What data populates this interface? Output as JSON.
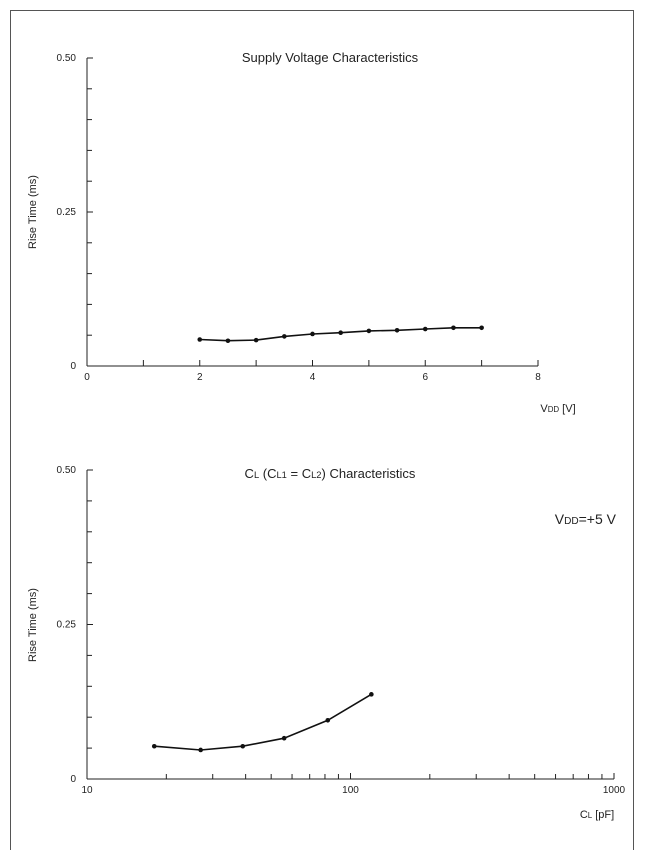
{
  "chart_data": [
    {
      "type": "line",
      "title": "Supply Voltage Characteristics",
      "xlabel": "VDD [V]",
      "ylabel": "Rise Time (ms)",
      "x_scale": "linear",
      "xlim": [
        0,
        8
      ],
      "ylim": [
        0,
        0.5
      ],
      "x_tick_labels": [
        "0",
        "2",
        "4",
        "6",
        "8"
      ],
      "y_tick_labels": [
        "0",
        "0.25",
        "0.50"
      ],
      "series": [
        {
          "x": [
            2,
            2.5,
            3,
            3.5,
            4,
            4.5,
            5,
            5.5,
            6,
            6.5,
            7
          ],
          "y": [
            0.043,
            0.041,
            0.042,
            0.048,
            0.052,
            0.054,
            0.057,
            0.058,
            0.06,
            0.062,
            0.062
          ]
        }
      ],
      "annotation": ""
    },
    {
      "type": "line",
      "title": "CL (CL1 = CL2) Characteristics",
      "xlabel": "CL [pF]",
      "ylabel": "Rise Time (ms)",
      "x_scale": "log",
      "xlim": [
        10,
        1000
      ],
      "ylim": [
        0,
        0.5
      ],
      "x_tick_labels": [
        "10",
        "100",
        "1000"
      ],
      "y_tick_labels": [
        "0",
        "0.25",
        "0.50"
      ],
      "series": [
        {
          "x": [
            18,
            27,
            39,
            56,
            82,
            120
          ],
          "y": [
            0.053,
            0.047,
            0.053,
            0.066,
            0.095,
            0.137
          ]
        }
      ],
      "annotation": "VDD=+5 V"
    }
  ]
}
